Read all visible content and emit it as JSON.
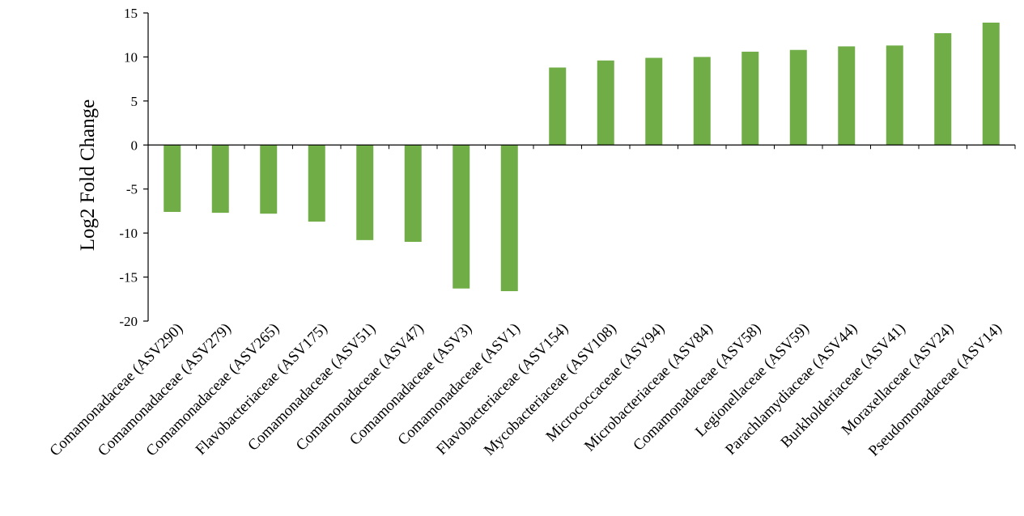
{
  "chart_data": {
    "type": "bar",
    "title": "",
    "xlabel": "",
    "ylabel": "Log2 Fold Change",
    "ylim": [
      -20,
      15
    ],
    "yticks": [
      15,
      10,
      5,
      0,
      -5,
      -10,
      -15,
      -20
    ],
    "grid": false,
    "legend": "none",
    "bar_color": "#70ad47",
    "categories": [
      "Comamonadaceae (ASV290)",
      "Comamonadaceae (ASV279)",
      "Comamonadaceae (ASV265)",
      "Flavobacteriaceae (ASV175)",
      "Comamonadaceae (ASV51)",
      "Comamonadaceae (ASV47)",
      "Comamonadaceae (ASV3)",
      "Comamonadaceae (ASV1)",
      "Flavobacteriaceae (ASV154)",
      "Mycobacteriaceae (ASV108)",
      "Micrococcaceae (ASV94)",
      "Microbacteriaceae (ASV84)",
      "Comamonadaceae (ASV58)",
      "Legionellaceae (ASV59)",
      "Parachlamydiaceae (ASV44)",
      "Burkholderiaceae (ASV41)",
      "Moraxellaceae (ASV24)",
      "Pseudomonadaceae (ASV14)"
    ],
    "values": [
      -7.6,
      -7.7,
      -7.8,
      -8.7,
      -10.8,
      -11.0,
      -16.3,
      -16.6,
      8.8,
      9.6,
      9.9,
      10.0,
      10.6,
      10.8,
      11.2,
      11.3,
      12.7,
      13.9
    ]
  }
}
